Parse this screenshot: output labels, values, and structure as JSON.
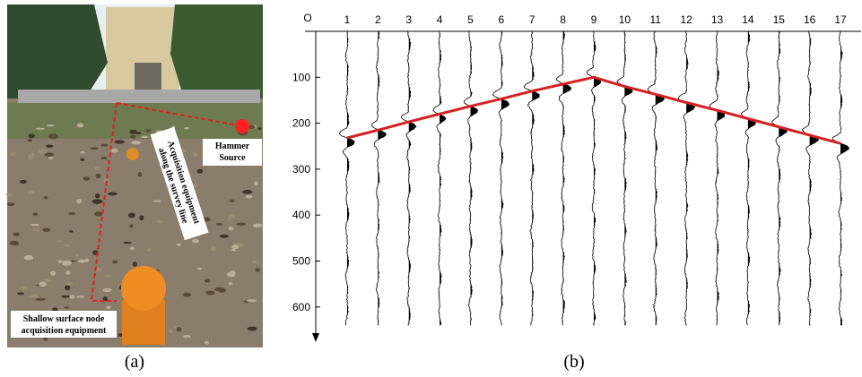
{
  "panel_a": {
    "caption": "(a)",
    "labels": {
      "source": [
        "Hammer",
        "Source"
      ],
      "line": [
        "Acquisition equipment",
        "along the survey line"
      ],
      "node": [
        "Shallow surface node",
        "acquisition equipment"
      ]
    }
  },
  "panel_b": {
    "caption": "(b)",
    "origin_label": "O",
    "traces": [
      "1",
      "2",
      "3",
      "4",
      "5",
      "6",
      "7",
      "8",
      "9",
      "10",
      "11",
      "12",
      "13",
      "14",
      "15",
      "16",
      "17"
    ],
    "time_lim": [
      0,
      680
    ],
    "time_ticks": [
      100,
      200,
      300,
      400,
      500,
      600
    ],
    "first_arrivals": [
      232,
      215,
      197,
      180,
      163,
      147,
      130,
      115,
      100,
      120,
      137,
      155,
      172,
      190,
      208,
      226,
      244
    ],
    "pick_color": "#d42020"
  }
}
